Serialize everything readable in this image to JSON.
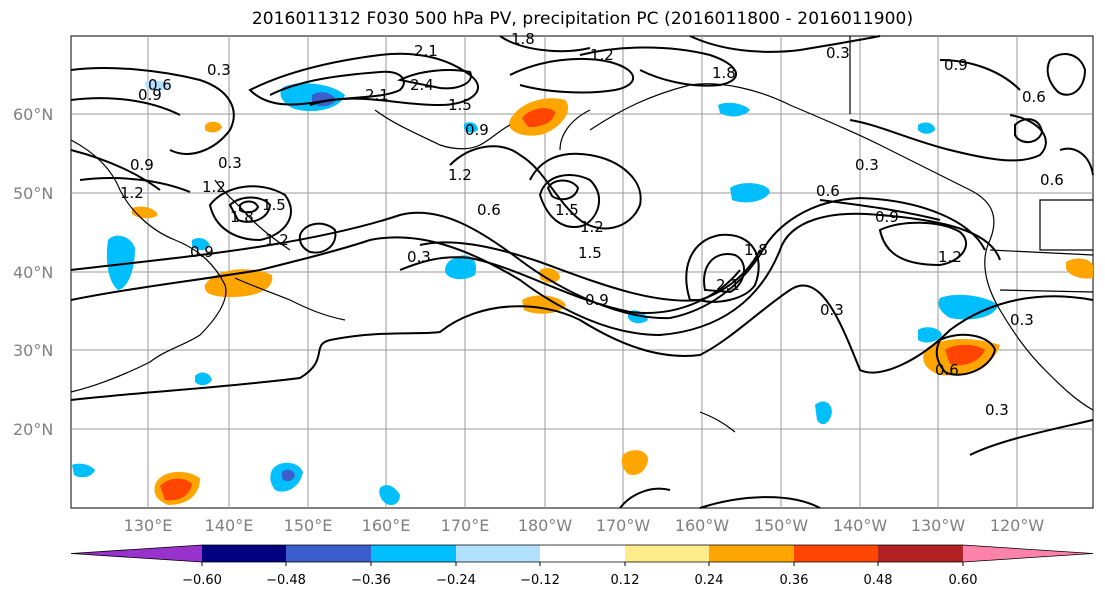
{
  "title": "2016011312 F030 500 hPa PV, precipitation PC (2016011800 - 2016011900)",
  "map": {
    "lat_labels": [
      "60°N",
      "50°N",
      "40°N",
      "30°N",
      "20°N"
    ],
    "lon_labels": [
      "130°E",
      "140°E",
      "150°E",
      "160°E",
      "170°E",
      "180°W",
      "170°W",
      "160°W",
      "150°W",
      "140°W",
      "130°W",
      "120°W"
    ],
    "contour_labels": [
      "0.3",
      "0.6",
      "0.9",
      "1.2",
      "1.5",
      "1.8",
      "2.1",
      "2.4"
    ],
    "land_color": "#ffffff",
    "grid_color": "#888888"
  },
  "colorbar": {
    "ticks": [
      "−0.60",
      "−0.48",
      "−0.36",
      "−0.24",
      "−0.12",
      "0.12",
      "0.24",
      "0.36",
      "0.48",
      "0.60"
    ],
    "colors": [
      "#9932CC",
      "#000080",
      "#3A5FCD",
      "#00BFFF",
      "#B2E0FF",
      "#FFFFFF",
      "#FFEC8B",
      "#FFA500",
      "#FF4500",
      "#B22222",
      "#FF82AB"
    ]
  }
}
